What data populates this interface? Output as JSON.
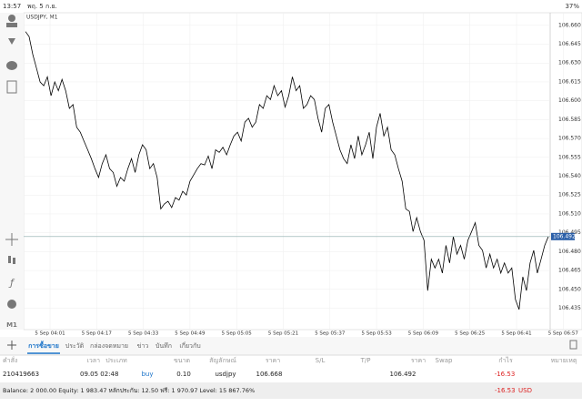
{
  "status_bar": {
    "time": "13:57",
    "date": "พฤ. 5 ก.ย.",
    "battery": "37%"
  },
  "toolbar": {
    "timeframe": "M1"
  },
  "chart_data": {
    "type": "line",
    "title": "USDJPY, M1",
    "color": "#000000",
    "grid": true,
    "ylim": [
      106.418,
      106.67
    ],
    "yticks": [
      {
        "value": 106.66,
        "label": "106.660"
      },
      106.645,
      {
        "value": 106.63,
        "label": "106.630"
      },
      106.615,
      {
        "value": 106.6,
        "label": "106.600"
      },
      106.585,
      {
        "value": 106.57,
        "label": "106.570"
      },
      106.555,
      {
        "value": 106.54,
        "label": "106.540"
      },
      106.525,
      {
        "value": 106.51,
        "label": "106.510"
      },
      106.495,
      {
        "value": 106.48,
        "label": "106.480"
      },
      106.465,
      {
        "value": 106.45,
        "label": "106.450"
      },
      106.435
    ],
    "xtick_labels": [
      "5 Sep 04:01",
      "5 Sep 04:17",
      "5 Sep 04:33",
      "5 Sep 04:49",
      "5 Sep 05:05",
      "5 Sep 05:21",
      "5 Sep 05:37",
      "5 Sep 05:53",
      "5 Sep 06:09",
      "5 Sep 06:25",
      "5 Sep 06:41",
      "5 Sep 06:57"
    ],
    "current_price": 106.492,
    "values": [
      106.655,
      106.651,
      106.637,
      106.626,
      106.615,
      106.612,
      106.619,
      106.604,
      106.615,
      106.608,
      106.617,
      106.608,
      106.594,
      106.597,
      106.579,
      106.575,
      106.568,
      106.561,
      106.554,
      106.546,
      106.539,
      106.55,
      106.557,
      106.546,
      106.543,
      106.532,
      106.539,
      106.536,
      106.546,
      106.554,
      106.543,
      106.557,
      106.565,
      106.561,
      106.546,
      106.55,
      106.539,
      106.514,
      106.518,
      106.52,
      106.515,
      106.523,
      106.521,
      106.528,
      106.525,
      106.536,
      106.541,
      106.546,
      106.55,
      106.549,
      106.556,
      106.546,
      106.561,
      106.559,
      106.563,
      106.557,
      106.565,
      106.572,
      106.575,
      106.568,
      106.583,
      106.586,
      106.579,
      106.583,
      106.597,
      106.594,
      106.604,
      106.601,
      106.612,
      106.604,
      106.608,
      106.595,
      106.604,
      106.619,
      106.608,
      106.612,
      106.594,
      106.597,
      106.604,
      106.601,
      106.586,
      106.575,
      106.594,
      106.597,
      106.583,
      106.572,
      106.561,
      106.554,
      106.55,
      106.565,
      106.554,
      106.572,
      106.557,
      106.565,
      106.575,
      106.554,
      106.579,
      106.59,
      106.572,
      106.579,
      106.561,
      106.557,
      106.546,
      106.536,
      106.514,
      106.512,
      106.496,
      106.507,
      106.496,
      106.489,
      106.449,
      106.474,
      106.467,
      106.474,
      106.463,
      106.485,
      106.471,
      106.492,
      106.478,
      106.485,
      106.474,
      106.489,
      106.496,
      106.503,
      106.485,
      106.481,
      106.467,
      106.478,
      106.467,
      106.474,
      106.463,
      106.471,
      106.463,
      106.467,
      106.442,
      106.434,
      106.46,
      106.449,
      106.471,
      106.481,
      106.463,
      106.474,
      106.485,
      106.492
    ]
  },
  "tabs": [
    "การซื้อขาย",
    "ประวัติ",
    "กล่องจดหมาย",
    "ข่าว",
    "บันทึก",
    "เกี่ยวกับ"
  ],
  "table": {
    "headers": [
      "คำสั่ง",
      "เวลา",
      "ประเภท",
      "ขนาด",
      "สัญลักษณ์",
      "ราคา",
      "S/L",
      "T/P",
      "ราคา",
      "Swap",
      "กำไร",
      "หมายเหตุ"
    ],
    "rows": [
      {
        "order": "210419663",
        "time": "09.05 02:48",
        "type": "buy",
        "size": "0.10",
        "symbol": "usdjpy",
        "open_price": "106.668",
        "price": "106.492",
        "profit": "-16.53"
      }
    ]
  },
  "summary": {
    "text": "Balance: 2 000.00 Equity: 1 983.47 หลักประกัน: 12.50 ฟรี: 1 970.97 Level: 15 867.76%",
    "profit": "-16.53",
    "currency": "USD"
  }
}
